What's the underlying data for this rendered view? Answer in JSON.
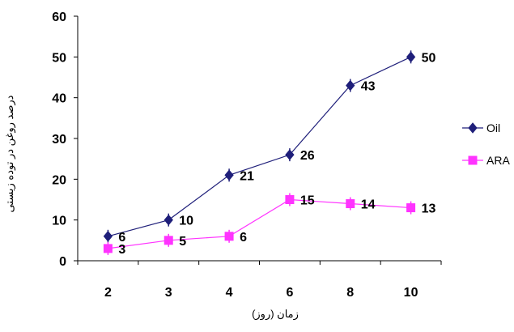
{
  "chart_data": {
    "type": "line",
    "categories": [
      "2",
      "3",
      "4",
      "6",
      "8",
      "10"
    ],
    "series": [
      {
        "name": "Oil",
        "values": [
          6,
          10,
          21,
          26,
          43,
          50
        ],
        "color": "#1f1f7a",
        "marker": "diamond",
        "labels": [
          "6",
          "10",
          "21",
          "26",
          "43",
          "50"
        ]
      },
      {
        "name": "ARA",
        "values": [
          3,
          5,
          6,
          15,
          14,
          13
        ],
        "color": "#ff33ff",
        "marker": "square",
        "labels": [
          "3",
          "5",
          "6",
          "15",
          "14",
          "13"
        ]
      }
    ],
    "xlabel": "زمان (روز)",
    "ylabel": "درصد روغن در توده زیستی",
    "ylim": [
      0,
      60
    ],
    "yticks": [
      "0",
      "10",
      "20",
      "30",
      "40",
      "50",
      "60"
    ],
    "grid": false,
    "legend_position": "right"
  }
}
